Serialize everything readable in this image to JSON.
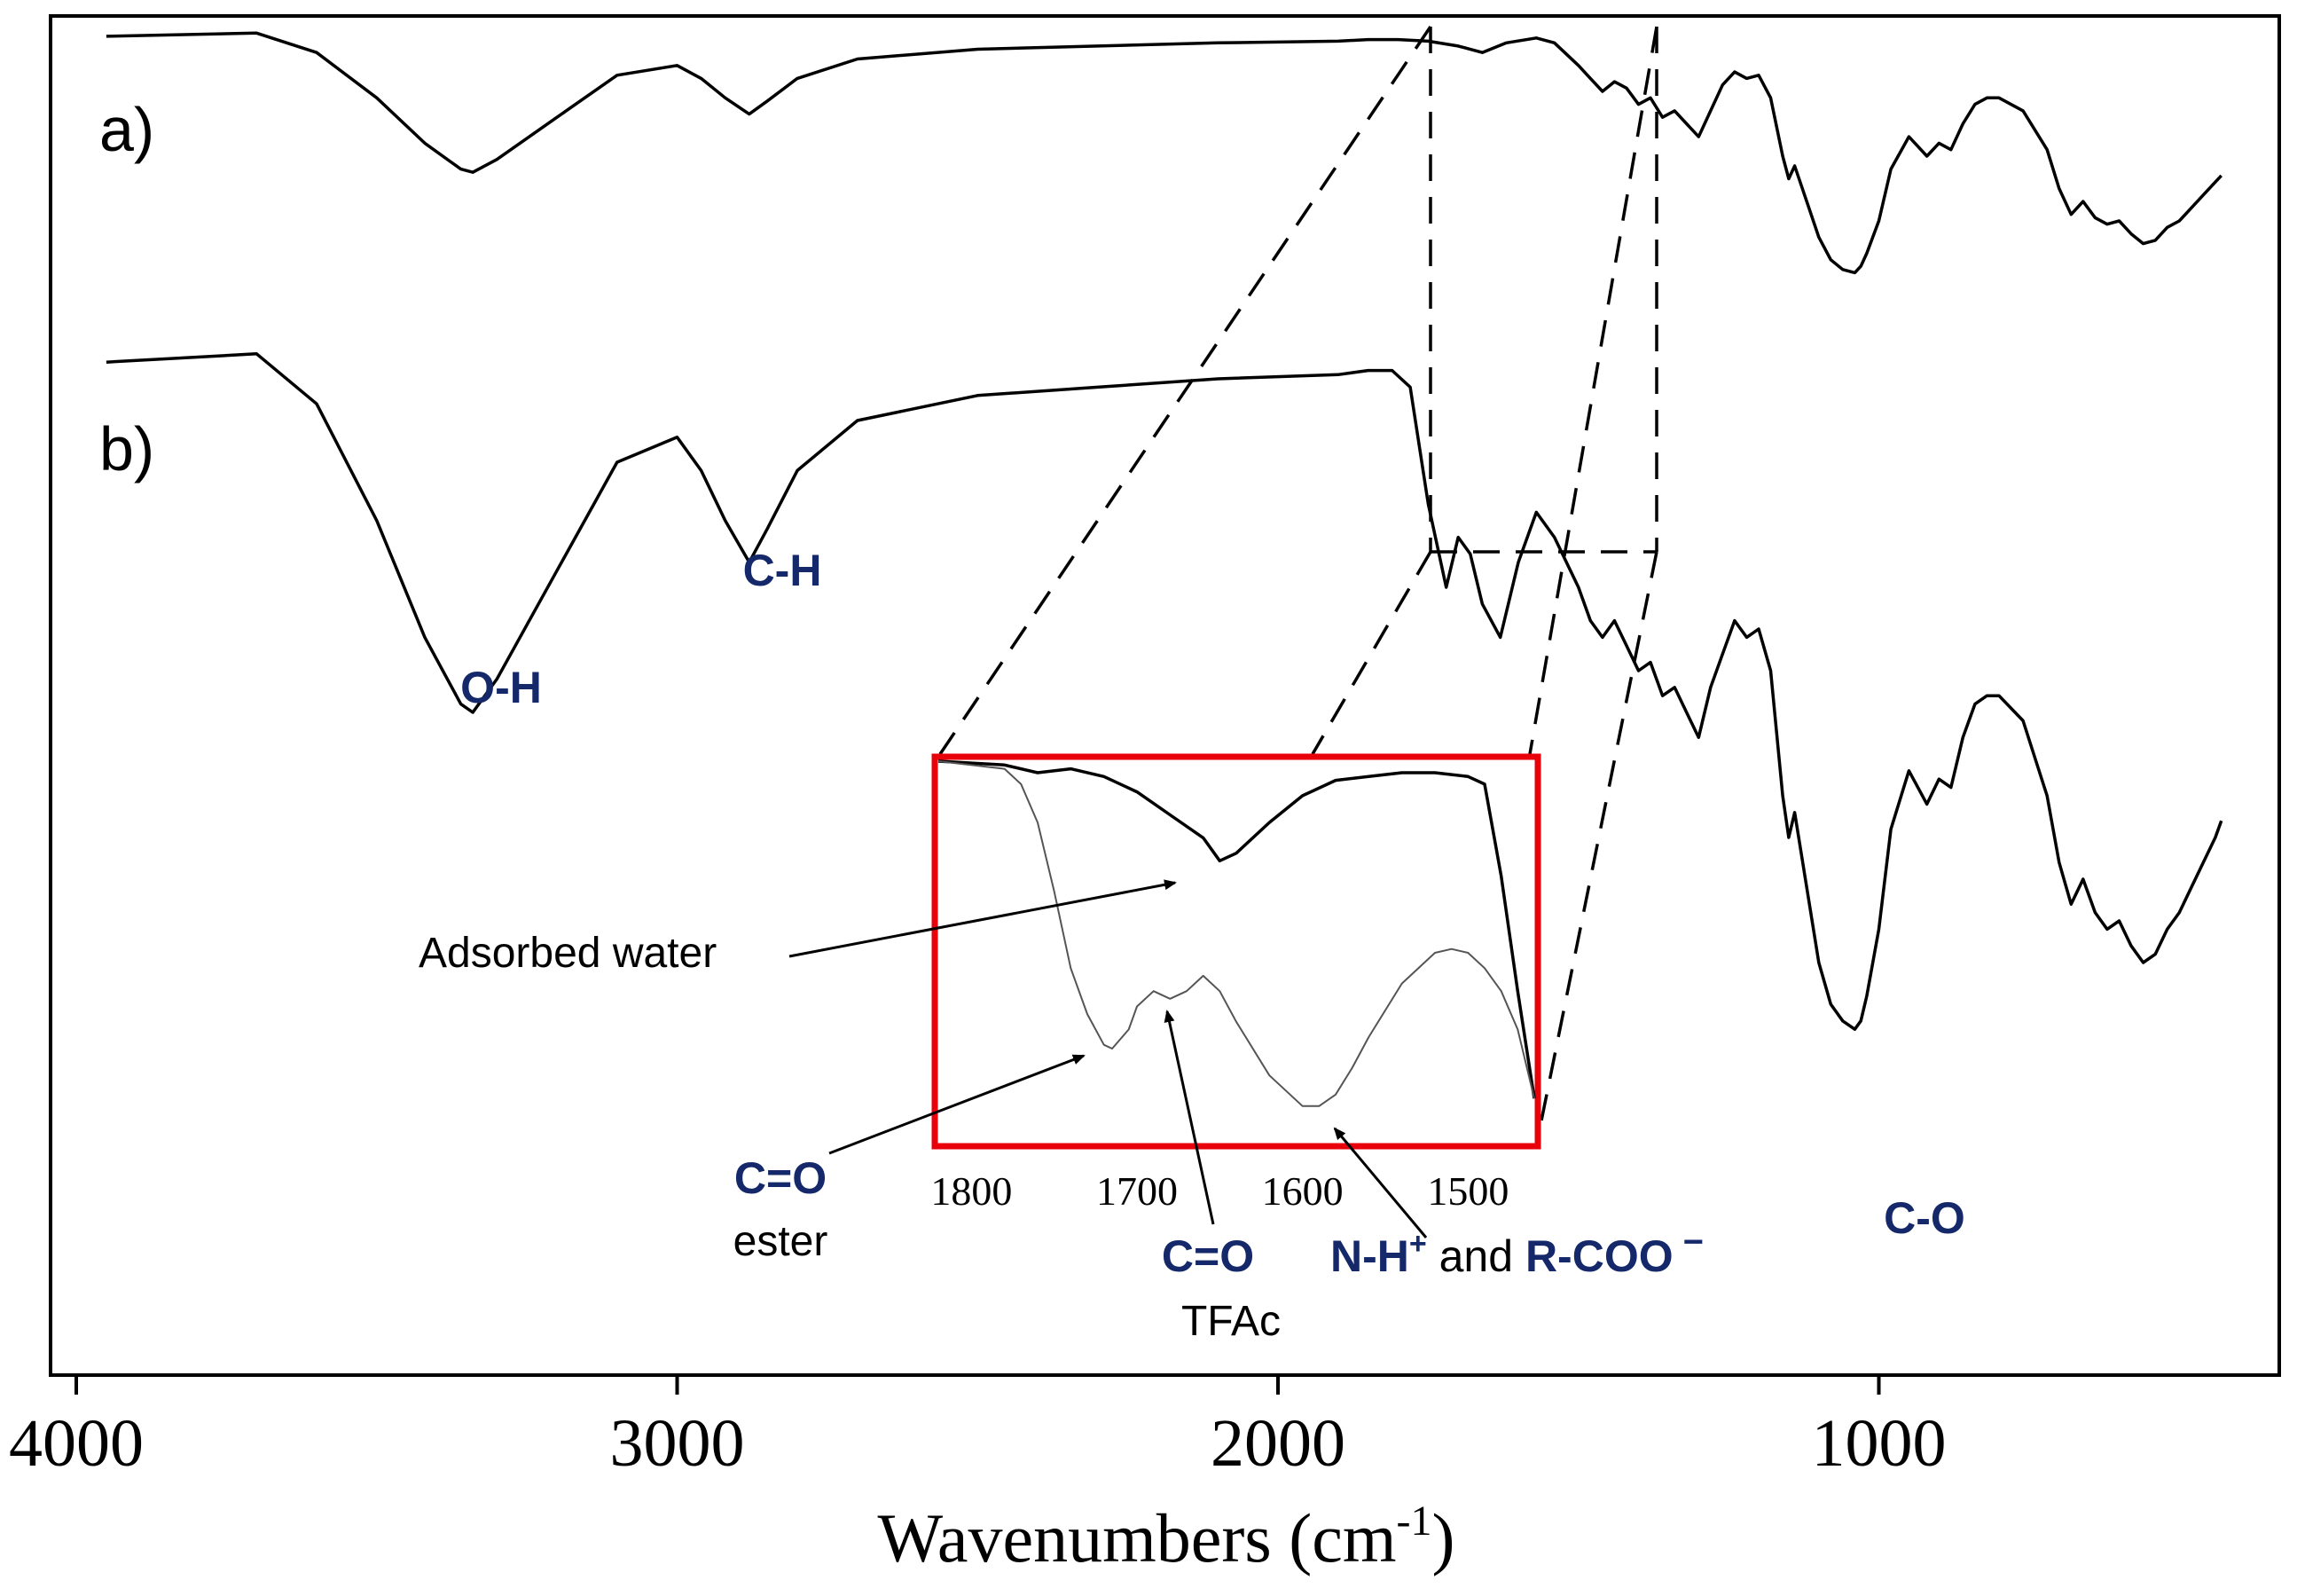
{
  "chart_data": {
    "type": "line",
    "title": "",
    "xlabel": "Wavenumbers (cm-1)",
    "xlabel_main": "Wavenumbers (cm",
    "xlabel_sup": "-1",
    "xlabel_tail": ")",
    "ylabel": "",
    "xlim": [
      4000,
      400
    ],
    "x_ticks": [
      4000,
      3000,
      2000,
      1000
    ],
    "x_tick_labels": [
      "4000",
      "3000",
      "2000",
      "1000"
    ],
    "grid": false,
    "series": [
      {
        "name": "a)",
        "label": "a)",
        "x": [
          3950,
          3700,
          3600,
          3500,
          3420,
          3360,
          3340,
          3300,
          3200,
          3100,
          3000,
          2960,
          2920,
          2880,
          2850,
          2800,
          2700,
          2500,
          2300,
          2100,
          1900,
          1850,
          1800,
          1750,
          1700,
          1660,
          1620,
          1570,
          1540,
          1500,
          1480,
          1460,
          1440,
          1420,
          1400,
          1380,
          1360,
          1340,
          1320,
          1300,
          1280,
          1260,
          1240,
          1220,
          1200,
          1180,
          1160,
          1150,
          1140,
          1120,
          1100,
          1080,
          1060,
          1040,
          1030,
          1020,
          1000,
          980,
          950,
          920,
          900,
          880,
          860,
          840,
          820,
          800,
          760,
          720,
          700,
          680,
          660,
          640,
          620,
          600,
          580,
          560,
          540,
          520,
          500,
          480,
          460,
          440,
          430
        ],
        "y": [
          97,
          98,
          92,
          78,
          64,
          56,
          55,
          59,
          72,
          85,
          88,
          84,
          78,
          73,
          77,
          84,
          90,
          93,
          94,
          95,
          95.5,
          96,
          96,
          95.5,
          94,
          92,
          95,
          96.5,
          95,
          88,
          84,
          80,
          83,
          81,
          76,
          78,
          72,
          74,
          70,
          66,
          74,
          82,
          86,
          84,
          85,
          78,
          60,
          53,
          57,
          46,
          35,
          28,
          25,
          24,
          26,
          30,
          40,
          56,
          66,
          60,
          64,
          62,
          70,
          76,
          78,
          78,
          74,
          62,
          50,
          42,
          46,
          41,
          39,
          40,
          36,
          33,
          34,
          38,
          40,
          44,
          48,
          52,
          54
        ]
      },
      {
        "name": "b)",
        "label": "b)",
        "x": [
          3950,
          3700,
          3600,
          3500,
          3420,
          3360,
          3340,
          3300,
          3200,
          3100,
          3000,
          2960,
          2920,
          2880,
          2850,
          2800,
          2700,
          2500,
          2300,
          2100,
          1900,
          1850,
          1810,
          1780,
          1750,
          1720,
          1700,
          1680,
          1660,
          1630,
          1600,
          1570,
          1540,
          1500,
          1480,
          1460,
          1440,
          1420,
          1400,
          1380,
          1360,
          1340,
          1320,
          1300,
          1280,
          1260,
          1240,
          1220,
          1200,
          1180,
          1160,
          1150,
          1140,
          1120,
          1100,
          1080,
          1060,
          1040,
          1030,
          1020,
          1000,
          980,
          950,
          920,
          900,
          880,
          860,
          840,
          820,
          800,
          760,
          720,
          700,
          680,
          660,
          640,
          620,
          600,
          580,
          560,
          540,
          520,
          500,
          480,
          460,
          440,
          430
        ],
        "y": [
          97,
          98,
          92,
          78,
          64,
          56,
          55,
          59,
          72,
          85,
          88,
          84,
          78,
          73,
          77,
          84,
          90,
          93,
          94,
          95,
          95.5,
          96,
          96,
          94,
          80,
          70,
          76,
          74,
          68,
          64,
          73,
          79,
          76,
          70,
          66,
          64,
          66,
          63,
          60,
          61,
          57,
          58,
          55,
          52,
          58,
          62,
          66,
          64,
          65,
          60,
          45,
          40,
          43,
          34,
          25,
          20,
          18,
          17,
          18,
          21,
          29,
          41,
          48,
          44,
          47,
          46,
          52,
          56,
          57,
          57,
          54,
          45,
          37,
          32,
          35,
          31,
          29,
          30,
          27,
          25,
          26,
          29,
          31,
          34,
          37,
          40,
          42
        ]
      }
    ],
    "inset": {
      "xlim": [
        1820,
        1460
      ],
      "x_ticks": [
        1800,
        1700,
        1600,
        1500
      ],
      "x_tick_labels": [
        "1800",
        "1700",
        "1600",
        "1500"
      ],
      "series": [
        {
          "name": "a) zoom 1800-1460",
          "x": [
            1820,
            1780,
            1760,
            1740,
            1720,
            1700,
            1680,
            1660,
            1650,
            1640,
            1620,
            1600,
            1580,
            1560,
            1540,
            1520,
            1500,
            1490,
            1480,
            1470,
            1460
          ],
          "y": [
            100,
            99,
            97,
            98,
            96,
            92,
            86,
            80,
            74,
            76,
            84,
            91,
            95,
            96,
            97,
            97,
            96,
            94,
            70,
            40,
            12
          ]
        },
        {
          "name": "b) zoom 1800-1460",
          "x": [
            1820,
            1780,
            1770,
            1760,
            1750,
            1740,
            1730,
            1720,
            1715,
            1705,
            1700,
            1690,
            1680,
            1670,
            1660,
            1650,
            1640,
            1620,
            1600,
            1590,
            1580,
            1570,
            1560,
            1540,
            1520,
            1510,
            1500,
            1490,
            1480,
            1470,
            1460
          ],
          "y": [
            100,
            98,
            94,
            84,
            66,
            46,
            34,
            26,
            25,
            30,
            36,
            40,
            38,
            40,
            44,
            40,
            32,
            18,
            10,
            10,
            13,
            20,
            28,
            42,
            50,
            51,
            50,
            46,
            40,
            30,
            12
          ]
        }
      ]
    },
    "annotations": {
      "oh": "O-H",
      "ch": "C-H",
      "co": "C-O",
      "adsorbed_water": "Adsorbed water",
      "co_ester_1": "C=O",
      "co_ester_2": "ester",
      "co_tfac_1": "C=O",
      "co_tfac_2": "TFAc",
      "nh_main": "N-H",
      "nh_sup": "+",
      "nh_and": " and ",
      "rcoo": "R-COO",
      "rcoo_sup": " −"
    },
    "colors": {
      "line": "#000000",
      "inset_frame": "#e8000b",
      "label_blue": "#14286a"
    }
  }
}
